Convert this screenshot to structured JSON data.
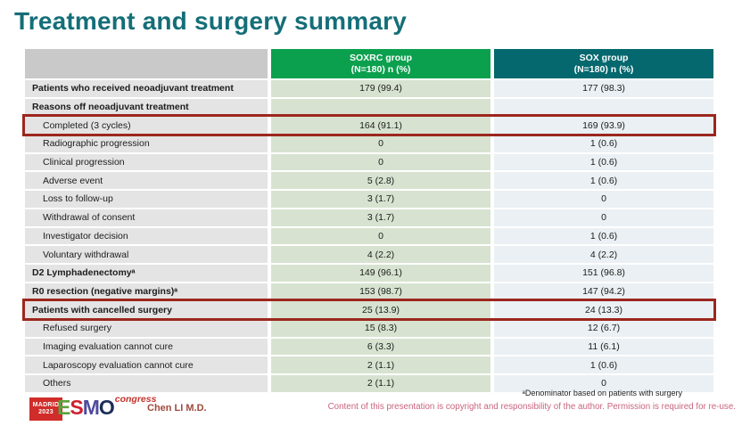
{
  "slide": {
    "title": "Treatment and surgery summary",
    "presenter": "Chen LI M.D.",
    "footnote": "ᵃDenominator based on patients with surgery",
    "copyright": "Content of this presentation is copyright and responsibility of the author. Permission is required for re-use."
  },
  "logo": {
    "location": "MADRID",
    "year": "2023",
    "letters": [
      "E",
      "S",
      "M",
      "O"
    ],
    "letter_colors": [
      "#5ea03d",
      "#cf2030",
      "#514a9e",
      "#1c2e58"
    ],
    "congress_label": "congress"
  },
  "colors": {
    "title": "#156e78",
    "soxrc_header_bg": "#0ba04e",
    "sox_header_bg": "#04686e",
    "label_cell_bg": "#e4e4e4",
    "soxrc_cell_bg": "#d7e3d0",
    "sox_cell_bg": "#eaf0f4",
    "highlight_border": "#9c271e",
    "copyright_text": "#c9647e"
  },
  "table": {
    "columns": [
      {
        "line1": "SOXRC group",
        "line2": "(N=180) n (%)",
        "bg": "#0ba04e"
      },
      {
        "line1": "SOX group",
        "line2": "(N=180) n (%)",
        "bg": "#04686e"
      }
    ],
    "rows": [
      {
        "label": "Patients who received neoadjuvant treatment",
        "soxrc": "179 (99.4)",
        "sox": "177 (98.3)",
        "bold": true,
        "indent": 0,
        "highlighted": false
      },
      {
        "label": "Reasons off neoadjuvant treatment",
        "soxrc": "",
        "sox": "",
        "bold": true,
        "indent": 0,
        "highlighted": false
      },
      {
        "label": "Completed (3 cycles)",
        "soxrc": "164 (91.1)",
        "sox": "169 (93.9)",
        "bold": false,
        "indent": 1,
        "highlighted": true
      },
      {
        "label": "Radiographic progression",
        "soxrc": "0",
        "sox": "1 (0.6)",
        "bold": false,
        "indent": 1,
        "highlighted": false
      },
      {
        "label": "Clinical progression",
        "soxrc": "0",
        "sox": "1 (0.6)",
        "bold": false,
        "indent": 1,
        "highlighted": false
      },
      {
        "label": "Adverse event",
        "soxrc": "5 (2.8)",
        "sox": "1 (0.6)",
        "bold": false,
        "indent": 1,
        "highlighted": false
      },
      {
        "label": "Loss to follow-up",
        "soxrc": "3 (1.7)",
        "sox": "0",
        "bold": false,
        "indent": 1,
        "highlighted": false
      },
      {
        "label": "Withdrawal of consent",
        "soxrc": "3 (1.7)",
        "sox": "0",
        "bold": false,
        "indent": 1,
        "highlighted": false
      },
      {
        "label": "Investigator decision",
        "soxrc": "0",
        "sox": "1 (0.6)",
        "bold": false,
        "indent": 1,
        "highlighted": false
      },
      {
        "label": "Voluntary withdrawal",
        "soxrc": "4 (2.2)",
        "sox": "4 (2.2)",
        "bold": false,
        "indent": 1,
        "highlighted": false
      },
      {
        "label": "D2 Lymphadenectomyᵃ",
        "soxrc": "149 (96.1)",
        "sox": "151 (96.8)",
        "bold": true,
        "indent": 0,
        "highlighted": false
      },
      {
        "label": "R0 resection (negative margins)ᵃ",
        "soxrc": "153 (98.7)",
        "sox": "147 (94.2)",
        "bold": true,
        "indent": 0,
        "highlighted": false
      },
      {
        "label": "Patients with cancelled surgery",
        "soxrc": "25 (13.9)",
        "sox": "24 (13.3)",
        "bold": true,
        "indent": 0,
        "highlighted": true
      },
      {
        "label": "Refused surgery",
        "soxrc": "15 (8.3)",
        "sox": "12 (6.7)",
        "bold": false,
        "indent": 1,
        "highlighted": false
      },
      {
        "label": "Imaging evaluation cannot cure",
        "soxrc": "6 (3.3)",
        "sox": "11 (6.1)",
        "bold": false,
        "indent": 1,
        "highlighted": false
      },
      {
        "label": "Laparoscopy evaluation cannot cure",
        "soxrc": "2 (1.1)",
        "sox": "1 (0.6)",
        "bold": false,
        "indent": 1,
        "highlighted": false
      },
      {
        "label": "Others",
        "soxrc": "2 (1.1)",
        "sox": "0",
        "bold": false,
        "indent": 1,
        "highlighted": false
      }
    ]
  }
}
